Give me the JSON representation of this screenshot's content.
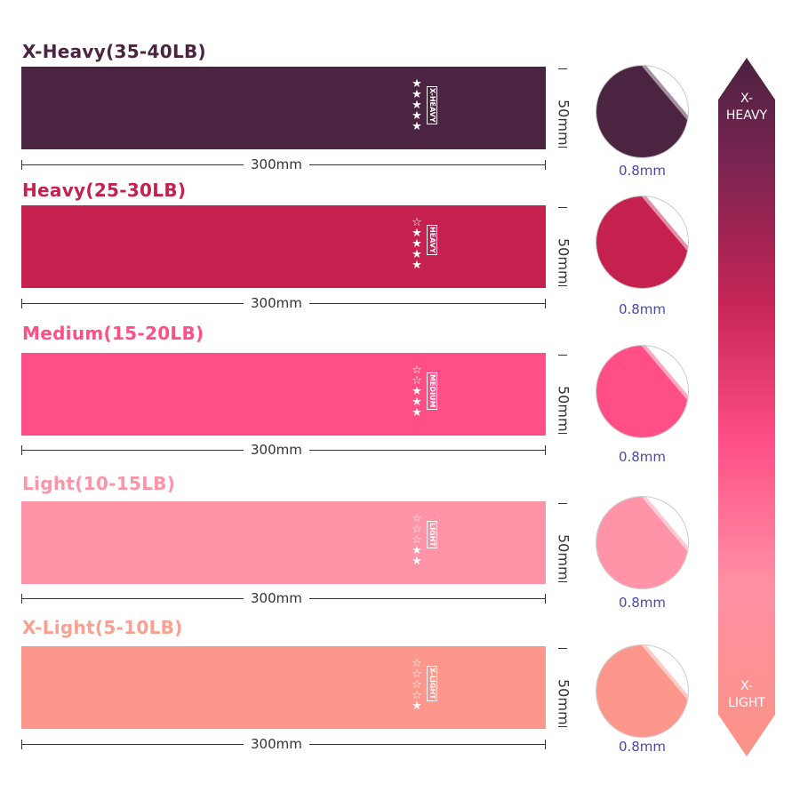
{
  "bands": [
    {
      "label": "X-Heavy(35-40LB)",
      "tag": "X-HEAVY",
      "stars": 5,
      "color": "#4a2441",
      "label_color": "#4a2441",
      "length": "300mm",
      "width": "50mm",
      "thickness": "0.8mm"
    },
    {
      "label": "Heavy(25-30LB)",
      "tag": "HEAVY",
      "stars": 4,
      "color": "#c4214f",
      "label_color": "#c4214f",
      "length": "300mm",
      "width": "50mm",
      "thickness": "0.8mm"
    },
    {
      "label": "Medium(15-20LB)",
      "tag": "MEDIUM",
      "stars": 3,
      "color": "#ff4f86",
      "label_color": "#ff4f86",
      "length": "300mm",
      "width": "50mm",
      "thickness": "0.8mm"
    },
    {
      "label": "Light(10-15LB)",
      "tag": "LIGHT",
      "stars": 2,
      "color": "#ff94a8",
      "label_color": "#ff94a8",
      "length": "300mm",
      "width": "50mm",
      "thickness": "0.8mm"
    },
    {
      "label": "X-Light(5-10LB)",
      "tag": "X-LIGHT",
      "stars": 1,
      "color": "#fd968b",
      "label_color": "#f9a090",
      "length": "300mm",
      "width": "50mm",
      "thickness": "0.8mm"
    }
  ],
  "max_stars": 5,
  "scale": {
    "top_line1": "X-",
    "top_line2": "HEAVY",
    "bottom_line1": "X-",
    "bottom_line2": "LIGHT"
  }
}
